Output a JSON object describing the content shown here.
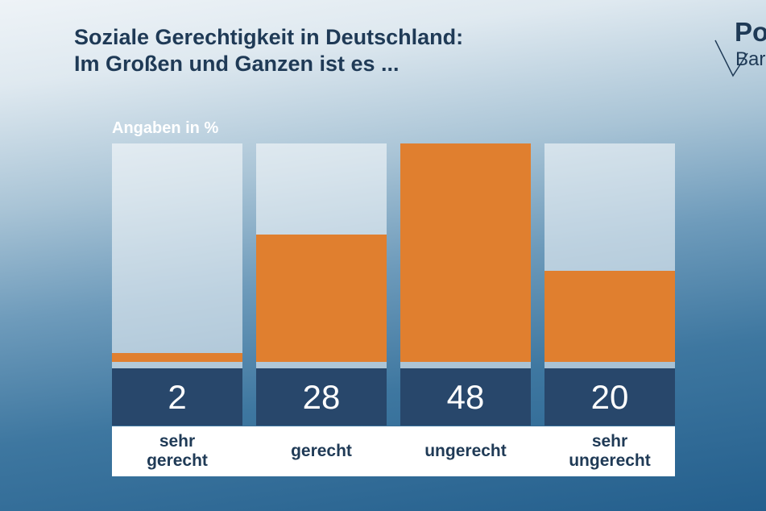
{
  "title_line1": "Soziale Gerechtigkeit in Deutschland:",
  "title_line2": "Im Großen und Ganzen ist es ...",
  "logo": {
    "top": "Po",
    "bottom": "Bar"
  },
  "unit_label": "Angaben in %",
  "colors": {
    "bar": "#e07f2f",
    "value_box": "#28476b",
    "label_text": "#1f3a56"
  },
  "chart_data": {
    "type": "bar",
    "categories": [
      "sehr\ngerecht",
      "gerecht",
      "ungerecht",
      "sehr\nungerecht"
    ],
    "values": [
      2,
      28,
      48,
      20
    ],
    "ylim": [
      0,
      48
    ],
    "title": "Soziale Gerechtigkeit in Deutschland: Im Großen und Ganzen ist es ...",
    "ylabel": "Angaben in %",
    "grid": false,
    "legend": "none"
  }
}
